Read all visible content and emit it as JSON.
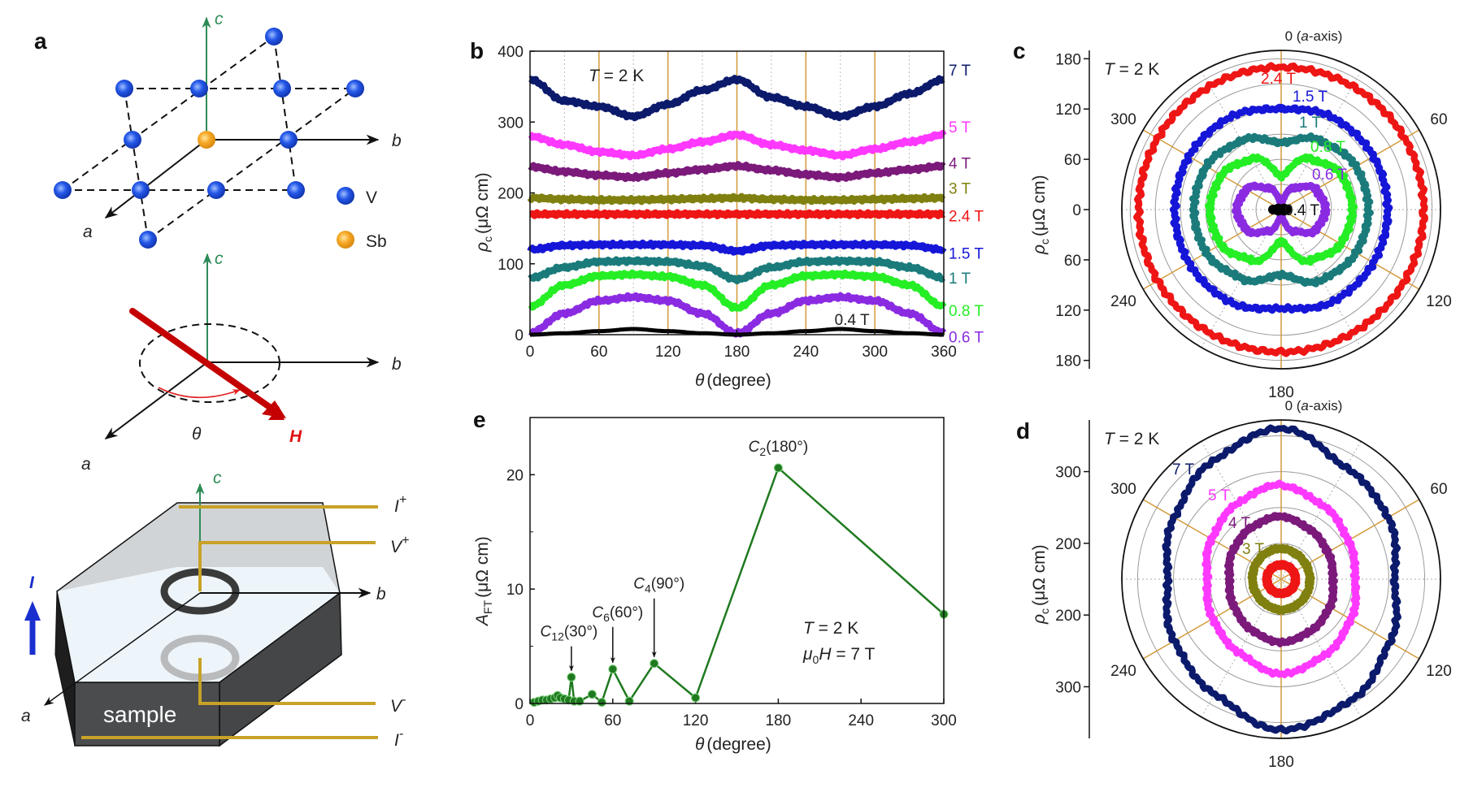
{
  "panel_labels": {
    "a": "a",
    "b": "b",
    "c": "c",
    "d": "d",
    "e": "e"
  },
  "schematic": {
    "axis_a": "a",
    "axis_b": "b",
    "axis_c": "c",
    "legend_v": "V",
    "legend_sb": "Sb",
    "theta": "θ",
    "field": "H",
    "current": "I",
    "i_plus": "I",
    "i_plus_sup": "+",
    "v_plus": "V",
    "v_plus_sup": "+",
    "v_minus": "V",
    "v_minus_sup": "-",
    "i_minus": "I",
    "i_minus_sup": "-",
    "sample": "sample",
    "colors": {
      "V": "#1f4fe0",
      "Sb": "#f5a623",
      "c_axis": "#2e8b57",
      "H": "#cc0000",
      "I_arrow": "#1a2fcf",
      "wires": "#c8a227"
    }
  },
  "series_colors": {
    "7 T": "#0b1a6b",
    "5 T": "#ff38ff",
    "4 T": "#7b1a7b",
    "3 T": "#808010",
    "2.4 T": "#ee1515",
    "1.5 T": "#1616d8",
    "1 T": "#1b7b7b",
    "0.8 T": "#25ee25",
    "0.6 T": "#8a2be2",
    "0.4 T": "#000000"
  },
  "chart_data": [
    {
      "panel": "b",
      "type": "line",
      "annotation_T": "T",
      "annotation_rest": " = 2 K",
      "ylabel_symbol": "ρ",
      "ylabel_sub": "c",
      "ylabel_unit": "(μΩ cm)",
      "xlabel_symbol": "θ",
      "xlabel_unit": "(degree)",
      "xlim": [
        0,
        360
      ],
      "ylim": [
        0,
        400
      ],
      "xticks": [
        0,
        60,
        120,
        180,
        240,
        300,
        360
      ],
      "yticks": [
        0,
        100,
        200,
        300,
        400
      ],
      "x": [
        0,
        30,
        60,
        90,
        120,
        150,
        180,
        210,
        240,
        270,
        300,
        330,
        360
      ],
      "series": [
        {
          "name": "7 T",
          "values": [
            360,
            330,
            322,
            308,
            325,
            345,
            360,
            335,
            322,
            308,
            322,
            340,
            360
          ]
        },
        {
          "name": "5 T",
          "values": [
            280,
            268,
            258,
            253,
            262,
            272,
            282,
            268,
            260,
            253,
            262,
            272,
            282
          ]
        },
        {
          "name": "4 T",
          "values": [
            237,
            230,
            225,
            222,
            228,
            233,
            238,
            232,
            226,
            222,
            228,
            233,
            238
          ]
        },
        {
          "name": "3 T",
          "values": [
            193,
            191,
            190,
            190,
            191,
            192,
            193,
            191,
            190,
            190,
            191,
            192,
            193
          ]
        },
        {
          "name": "2.4 T",
          "values": [
            170,
            170,
            170,
            170,
            170,
            170,
            170,
            170,
            170,
            170,
            170,
            170,
            170
          ]
        },
        {
          "name": "1.5 T",
          "values": [
            120,
            126,
            127,
            127,
            127,
            126,
            118,
            126,
            127,
            127,
            127,
            126,
            120
          ]
        },
        {
          "name": "1 T",
          "values": [
            80,
            95,
            103,
            104,
            103,
            97,
            78,
            95,
            103,
            104,
            103,
            95,
            80
          ]
        },
        {
          "name": "0.8 T",
          "values": [
            40,
            70,
            83,
            85,
            82,
            70,
            38,
            70,
            83,
            85,
            82,
            70,
            40
          ]
        },
        {
          "name": "0.6 T",
          "values": [
            3,
            30,
            48,
            53,
            48,
            30,
            2,
            30,
            48,
            53,
            48,
            30,
            3
          ]
        },
        {
          "name": "0.4 T",
          "values": [
            0,
            2,
            5,
            8,
            5,
            2,
            0,
            2,
            5,
            8,
            5,
            2,
            0
          ]
        }
      ],
      "grid": "vertical lines at 60° intervals (orange) and 30° dotted"
    },
    {
      "panel": "c",
      "type": "polar",
      "top_label": "0 (",
      "top_label_axis": "a",
      "top_label_end": "-axis)",
      "angle_labels": [
        "60",
        "120",
        "180",
        "240",
        "300"
      ],
      "radial_ticks": [
        "180",
        "120",
        "60",
        "0",
        "60",
        "120",
        "180"
      ],
      "rlim": [
        0,
        190
      ],
      "annotation_T": "T",
      "annotation_rest": " = 2 K",
      "ylabel_symbol": "ρ",
      "ylabel_sub": "c",
      "ylabel_unit": "(μΩ cm)",
      "series_names": [
        "2.4 T",
        "1.5 T",
        "1 T",
        "0.8 T",
        "0.6 T",
        "0.4 T"
      ],
      "direction": "clockwise from top"
    },
    {
      "panel": "d",
      "type": "polar",
      "top_label": "0 (",
      "top_label_axis": "a",
      "top_label_end": "-axis)",
      "angle_labels": [
        "60",
        "120",
        "180",
        "240",
        "300"
      ],
      "radial_ticks": [
        "300",
        "200",
        "200",
        "300"
      ],
      "rlim": [
        150,
        372
      ],
      "annotation_T": "T",
      "annotation_rest": " = 2 K",
      "ylabel_symbol": "ρ",
      "ylabel_sub": "c",
      "ylabel_unit": "(μΩ cm)",
      "series_names": [
        "7 T",
        "5 T",
        "4 T",
        "3 T",
        "2.4 T"
      ],
      "direction": "clockwise from top"
    },
    {
      "panel": "e",
      "type": "line",
      "ylabel_symbol": "A",
      "ylabel_sub": "FT",
      "ylabel_unit": "(μΩ cm)",
      "xlabel_symbol": "θ",
      "xlabel_unit": "(degree)",
      "xlim": [
        0,
        300
      ],
      "ylim": [
        0,
        25
      ],
      "xticks": [
        0,
        60,
        120,
        180,
        240,
        300
      ],
      "yticks": [
        0,
        10,
        20
      ],
      "x": [
        3,
        6,
        9,
        12,
        15,
        18,
        20,
        22,
        25,
        28,
        30,
        32,
        36,
        45,
        52,
        60,
        72,
        90,
        120,
        180,
        300
      ],
      "values": [
        0.1,
        0.2,
        0.3,
        0.3,
        0.4,
        0.5,
        0.7,
        0.5,
        0.4,
        0.3,
        2.3,
        0.2,
        0.2,
        0.8,
        0.1,
        3.0,
        0.2,
        3.5,
        0.5,
        20.6,
        7.8
      ],
      "color": "#1f7a1f",
      "annotations": [
        {
          "symbol": "C",
          "sub": "12",
          "text": "(30°)",
          "x": 30,
          "y": 2.3
        },
        {
          "symbol": "C",
          "sub": "6",
          "text": "(60°)",
          "x": 60,
          "y": 3.0
        },
        {
          "symbol": "C",
          "sub": "4",
          "text": "(90°)",
          "x": 90,
          "y": 3.5
        },
        {
          "symbol": "C",
          "sub": "2",
          "text": "(180°)",
          "x": 180,
          "y": 20.6
        }
      ],
      "condition_T": "T",
      "condition_T_rest": " = 2 K",
      "condition_H_mu": "μ",
      "condition_H_sub": "0",
      "condition_H": "H",
      "condition_H_rest": " = 7 T"
    }
  ]
}
